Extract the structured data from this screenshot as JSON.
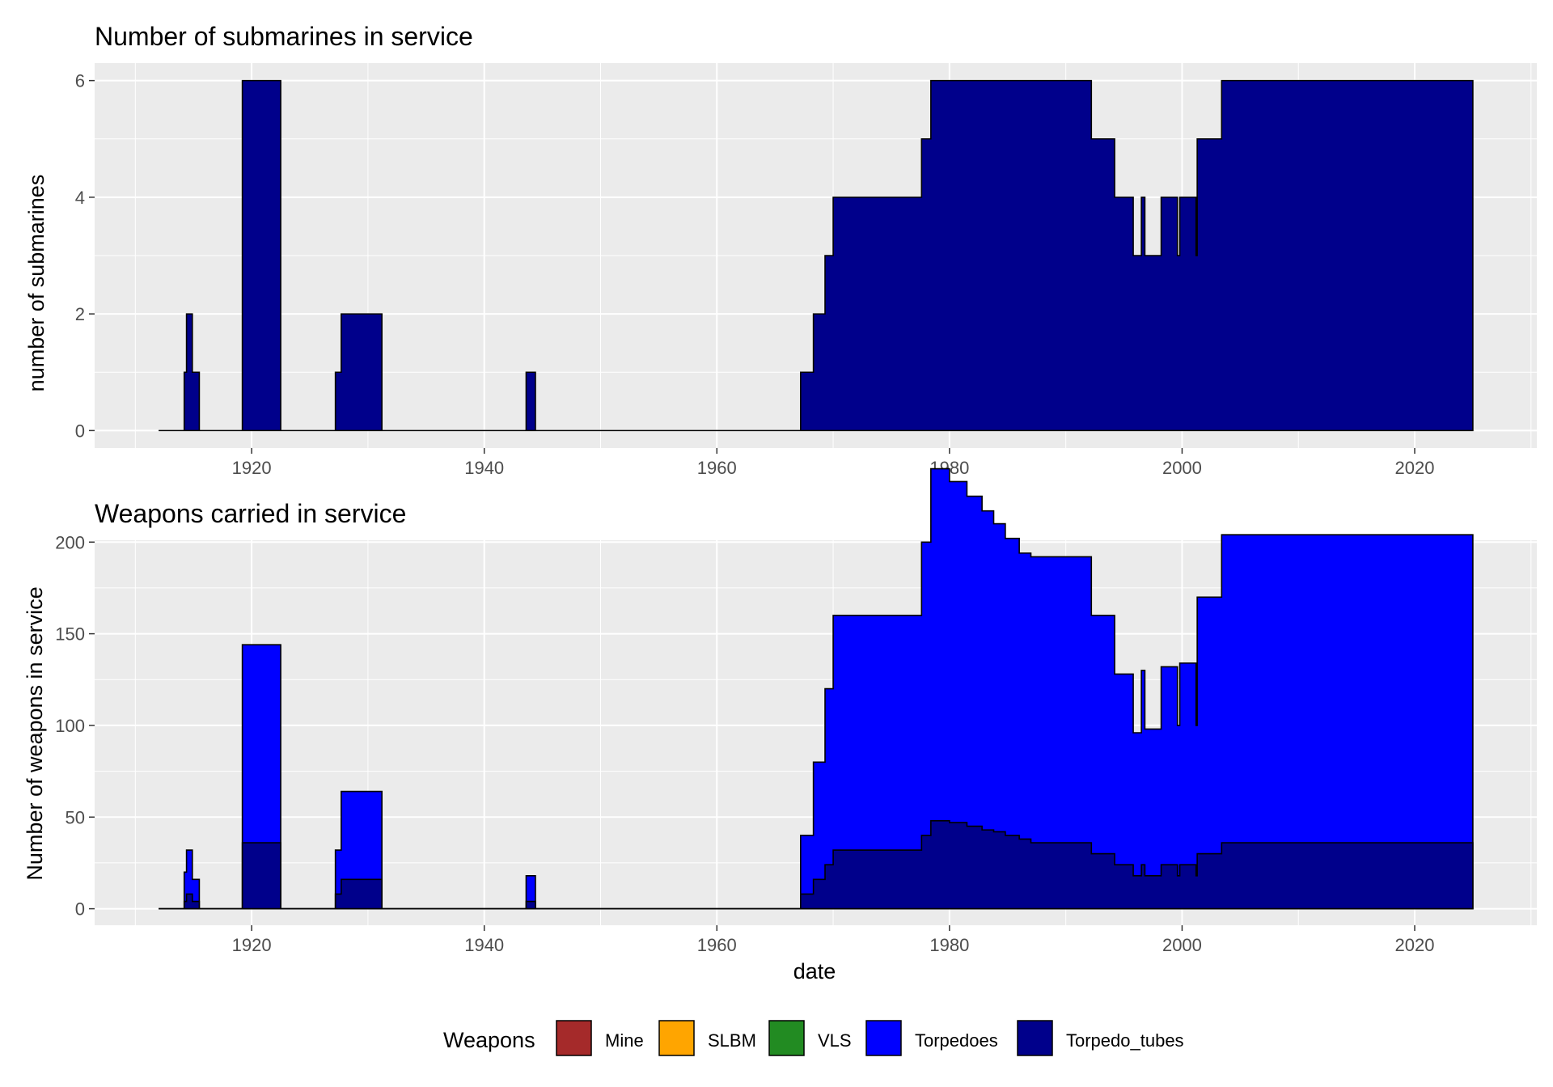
{
  "colors": {
    "panel_bg": "#EBEBEB",
    "grid": "#FFFFFF",
    "Mine": "#A52A2A",
    "SLBM": "#FFA500",
    "VLS": "#228B22",
    "Torpedoes": "#0000FF",
    "Torpedo_tubes": "#00008B",
    "outline": "#000000"
  },
  "legend": {
    "title": "Weapons",
    "items": [
      "Mine",
      "SLBM",
      "VLS",
      "Torpedoes",
      "Torpedo_tubes"
    ]
  },
  "chart_data": [
    {
      "type": "area",
      "title": "Number of submarines in service",
      "xlabel": "",
      "ylabel": "number of submarines",
      "xlim": [
        1906.5,
        2030.5
      ],
      "ylim": [
        -0.3,
        6.3
      ],
      "x_ticks": [
        1920,
        1940,
        1960,
        1980,
        2000,
        2020
      ],
      "y_ticks": [
        0,
        2,
        4,
        6
      ],
      "grid": true,
      "step": true,
      "series": [
        {
          "name": "Torpedo_tubes",
          "points": [
            [
              1912,
              0
            ],
            [
              1914.2,
              1
            ],
            [
              1914.4,
              2
            ],
            [
              1914.9,
              1
            ],
            [
              1915.5,
              0
            ],
            [
              1919.2,
              6
            ],
            [
              1922.5,
              0
            ],
            [
              1927.2,
              1
            ],
            [
              1927.7,
              2
            ],
            [
              1931.2,
              0
            ],
            [
              1943.6,
              1
            ],
            [
              1944.4,
              0
            ],
            [
              1967.2,
              1
            ],
            [
              1968.3,
              2
            ],
            [
              1969.3,
              3
            ],
            [
              1970.0,
              4
            ],
            [
              1977.6,
              5
            ],
            [
              1978.4,
              6
            ],
            [
              1992.2,
              5
            ],
            [
              1994.2,
              4
            ],
            [
              1995.8,
              3
            ],
            [
              1996.5,
              4
            ],
            [
              1996.8,
              3
            ],
            [
              1998.2,
              4
            ],
            [
              1999.6,
              3
            ],
            [
              1999.8,
              4
            ],
            [
              2001.2,
              3
            ],
            [
              2001.3,
              5
            ],
            [
              2003.4,
              6
            ],
            [
              2025.0,
              0
            ]
          ]
        }
      ]
    },
    {
      "type": "area",
      "title": "Weapons carried in service",
      "xlabel": "date",
      "ylabel": "Number of weapons in service",
      "xlim": [
        1906.5,
        2030.5
      ],
      "ylim": [
        -9,
        201
      ],
      "x_ticks": [
        1920,
        1940,
        1960,
        1980,
        2000,
        2020
      ],
      "y_ticks": [
        0,
        50,
        100,
        150,
        200
      ],
      "grid": true,
      "stacked": true,
      "step": true,
      "series": [
        {
          "name": "Torpedoes",
          "points": [
            [
              1912,
              0
            ],
            [
              1914.2,
              16
            ],
            [
              1914.4,
              24
            ],
            [
              1914.9,
              12
            ],
            [
              1915.5,
              0
            ],
            [
              1919.2,
              108
            ],
            [
              1922.5,
              0
            ],
            [
              1927.2,
              24
            ],
            [
              1927.7,
              48
            ],
            [
              1931.2,
              0
            ],
            [
              1943.6,
              14
            ],
            [
              1944.4,
              0
            ],
            [
              1967.2,
              32
            ],
            [
              1968.3,
              64
            ],
            [
              1969.3,
              96
            ],
            [
              1970.0,
              128
            ],
            [
              1977.6,
              160
            ],
            [
              1978.4,
              192
            ],
            [
              1980.0,
              186
            ],
            [
              1981.5,
              180
            ],
            [
              1982.8,
              174
            ],
            [
              1983.8,
              168
            ],
            [
              1984.8,
              162
            ],
            [
              1986.0,
              156
            ],
            [
              1992.2,
              130
            ],
            [
              1994.2,
              104
            ],
            [
              1995.8,
              78
            ],
            [
              1996.5,
              106
            ],
            [
              1996.8,
              80
            ],
            [
              1998.2,
              108
            ],
            [
              1999.6,
              82
            ],
            [
              1999.8,
              110
            ],
            [
              2001.2,
              82
            ],
            [
              2001.3,
              140
            ],
            [
              2003.4,
              168
            ],
            [
              2025.0,
              0
            ]
          ]
        },
        {
          "name": "Torpedo_tubes",
          "points": [
            [
              1912,
              0
            ],
            [
              1914.2,
              4
            ],
            [
              1914.4,
              8
            ],
            [
              1914.9,
              4
            ],
            [
              1915.5,
              0
            ],
            [
              1919.2,
              36
            ],
            [
              1922.5,
              0
            ],
            [
              1927.2,
              8
            ],
            [
              1927.7,
              16
            ],
            [
              1931.2,
              0
            ],
            [
              1943.6,
              4
            ],
            [
              1944.4,
              0
            ],
            [
              1967.2,
              8
            ],
            [
              1968.3,
              16
            ],
            [
              1969.3,
              24
            ],
            [
              1970.0,
              32
            ],
            [
              1977.6,
              40
            ],
            [
              1978.4,
              48
            ],
            [
              1980.0,
              47
            ],
            [
              1981.5,
              45
            ],
            [
              1982.8,
              43
            ],
            [
              1983.8,
              42
            ],
            [
              1984.8,
              40
            ],
            [
              1986.0,
              38
            ],
            [
              1987.0,
              36
            ],
            [
              1992.2,
              30
            ],
            [
              1994.2,
              24
            ],
            [
              1995.8,
              18
            ],
            [
              1996.5,
              24
            ],
            [
              1996.8,
              18
            ],
            [
              1998.2,
              24
            ],
            [
              1999.6,
              18
            ],
            [
              1999.8,
              24
            ],
            [
              2001.2,
              18
            ],
            [
              2001.3,
              30
            ],
            [
              2003.4,
              36
            ],
            [
              2025.0,
              0
            ]
          ]
        }
      ]
    }
  ]
}
